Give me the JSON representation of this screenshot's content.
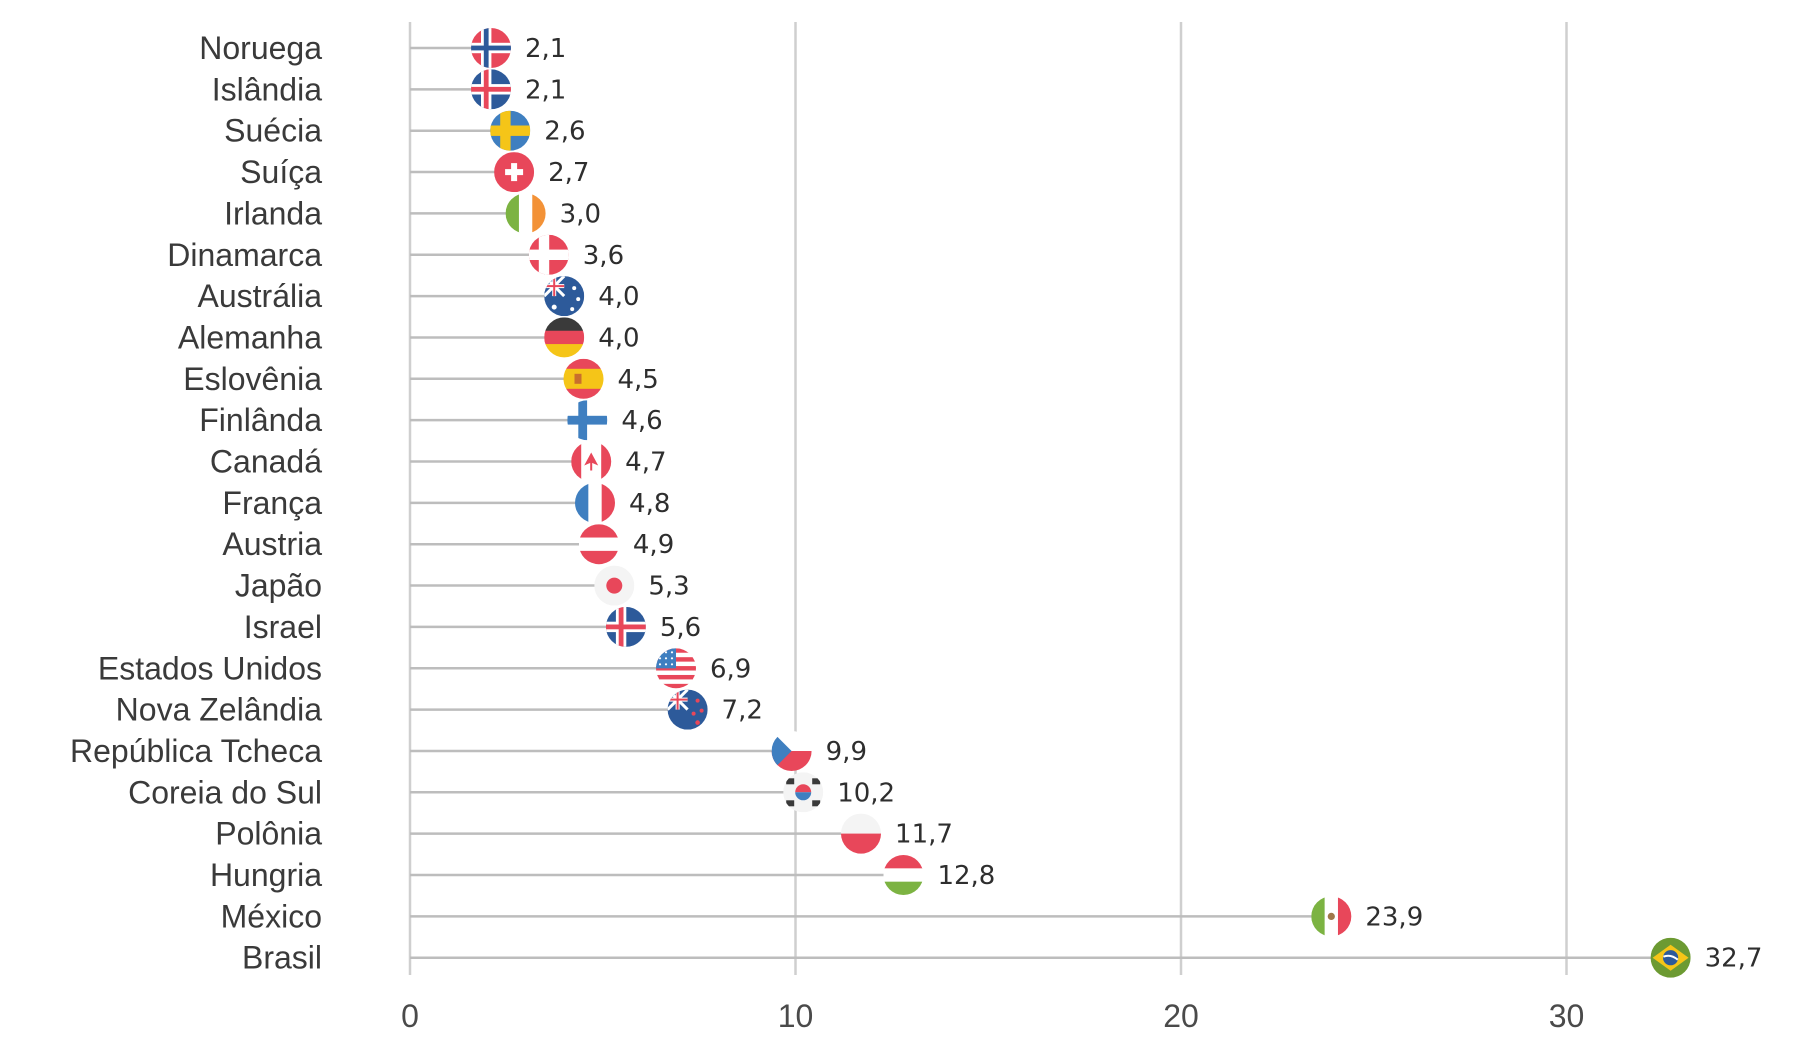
{
  "chart_data": {
    "type": "lollipop",
    "xlim": [
      0,
      33
    ],
    "xticks": [
      0,
      10,
      20,
      30
    ],
    "xtick_labels": [
      "0",
      "10",
      "20",
      "30"
    ],
    "grid": "vertical",
    "categories": [
      "Noruega",
      "Islândia",
      "Suécia",
      "Suíça",
      "Irlanda",
      "Dinamarca",
      "Austrália",
      "Alemanha",
      "Eslovênia",
      "Finlânda",
      "Canadá",
      "França",
      "Austria",
      "Japão",
      "Israel",
      "Estados Unidos",
      "Nova Zelândia",
      "República Tcheca",
      "Coreia do Sul",
      "Polônia",
      "Hungria",
      "México",
      "Brasil"
    ],
    "values": [
      2.1,
      2.1,
      2.6,
      2.7,
      3.0,
      3.6,
      4.0,
      4.0,
      4.5,
      4.6,
      4.7,
      4.8,
      4.9,
      5.3,
      5.6,
      6.9,
      7.2,
      9.9,
      10.2,
      11.7,
      12.8,
      23.9,
      32.7
    ],
    "value_labels": [
      "2,1",
      "2,1",
      "2,6",
      "2,7",
      "3,0",
      "3,6",
      "4,0",
      "4,0",
      "4,5",
      "4,6",
      "4,7",
      "4,8",
      "4,9",
      "5,3",
      "5,6",
      "6,9",
      "7,2",
      "9,9",
      "10,2",
      "11,7",
      "12,8",
      "23,9",
      "32,7"
    ],
    "markers": [
      "norway-flag",
      "iceland-flag",
      "sweden-flag",
      "switzerland-flag",
      "ireland-flag",
      "denmark-flag",
      "australia-flag",
      "germany-flag",
      "spain-flag",
      "finland-flag",
      "canada-flag",
      "france-flag",
      "austria-flag",
      "japan-flag",
      "iceland-flag",
      "usa-flag",
      "new-zealand-flag",
      "czech-flag",
      "south-korea-flag",
      "poland-flag",
      "hungary-flag",
      "mexico-flag",
      "brazil-flag"
    ],
    "colors": {
      "grid": "#cfcfcf",
      "stem": "#bdbdbd",
      "text": "#3a3a3a"
    }
  }
}
